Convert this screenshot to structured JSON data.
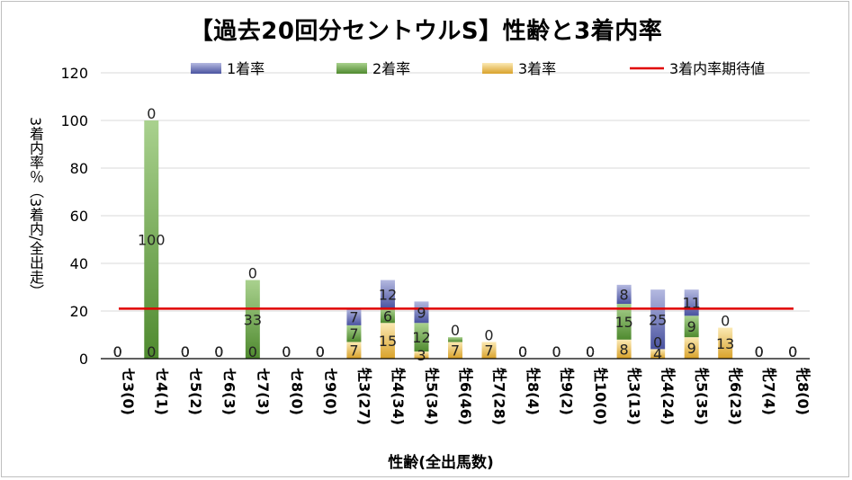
{
  "title": "【過去20回分セントウルS】性齢と3着内率",
  "chart_data": {
    "type": "bar",
    "stacked": true,
    "title": "【過去20回分セントウルS】性齢と3着内率",
    "xlabel": "性齢(全出馬数)",
    "ylabel": "3着内率％（3着内/全出走）",
    "ylim": [
      0,
      120
    ],
    "yticks": [
      "0",
      "20",
      "40",
      "60",
      "80",
      "100",
      "120"
    ],
    "grid": true,
    "legend_position": "top",
    "categories": [
      "セ3(0)",
      "セ4(1)",
      "セ5(2)",
      "セ6(3)",
      "セ7(3)",
      "セ8(0)",
      "セ9(0)",
      "牡3(27)",
      "牡4(34)",
      "牡5(34)",
      "牡6(46)",
      "牡7(28)",
      "牡8(4)",
      "牡9(2)",
      "牡10(0)",
      "牝3(13)",
      "牝4(24)",
      "牝5(35)",
      "牝6(23)",
      "牝7(4)",
      "牝8(0)"
    ],
    "series": [
      {
        "name": "3着率",
        "color": "#e3b23c",
        "values": [
          0,
          0,
          0,
          0,
          0,
          0,
          0,
          7,
          15,
          3,
          7,
          7,
          0,
          0,
          0,
          8,
          4,
          9,
          13,
          0,
          0
        ]
      },
      {
        "name": "2着率",
        "color": "#6aa84f",
        "values": [
          0,
          100,
          0,
          0,
          33,
          0,
          0,
          7,
          6,
          12,
          2,
          0,
          0,
          0,
          0,
          15,
          0,
          9,
          0,
          0,
          0
        ]
      },
      {
        "name": "1着率",
        "color": "#6c74b8",
        "values": [
          0,
          0,
          0,
          0,
          0,
          0,
          0,
          7,
          12,
          9,
          0,
          0,
          0,
          0,
          0,
          8,
          25,
          11,
          0,
          0,
          0
        ]
      }
    ],
    "data_labels": {
      "3着率": [
        "0",
        "0",
        "0",
        "0",
        "0",
        "0",
        "0",
        "7",
        "15",
        "3",
        "7",
        "7",
        "0",
        "0",
        "0",
        "8",
        "4",
        "9",
        "13",
        "0",
        "0"
      ],
      "2着率": [
        "0",
        "100",
        "0",
        "0",
        "33",
        "0",
        "0",
        "7",
        "6",
        "12",
        "",
        "",
        "0",
        "0",
        "0",
        "15",
        "0",
        "9",
        "",
        "0",
        "0"
      ],
      "1着率": [
        "0",
        "0",
        "0",
        "0",
        "0",
        "0",
        "0",
        "7",
        "12",
        "9",
        "0",
        "0",
        "0",
        "0",
        "0",
        "8",
        "25",
        "11",
        "0",
        "0",
        "0"
      ]
    },
    "reference_line": {
      "name": "3着内率期待値",
      "value": 21,
      "color": "#e00000"
    }
  }
}
